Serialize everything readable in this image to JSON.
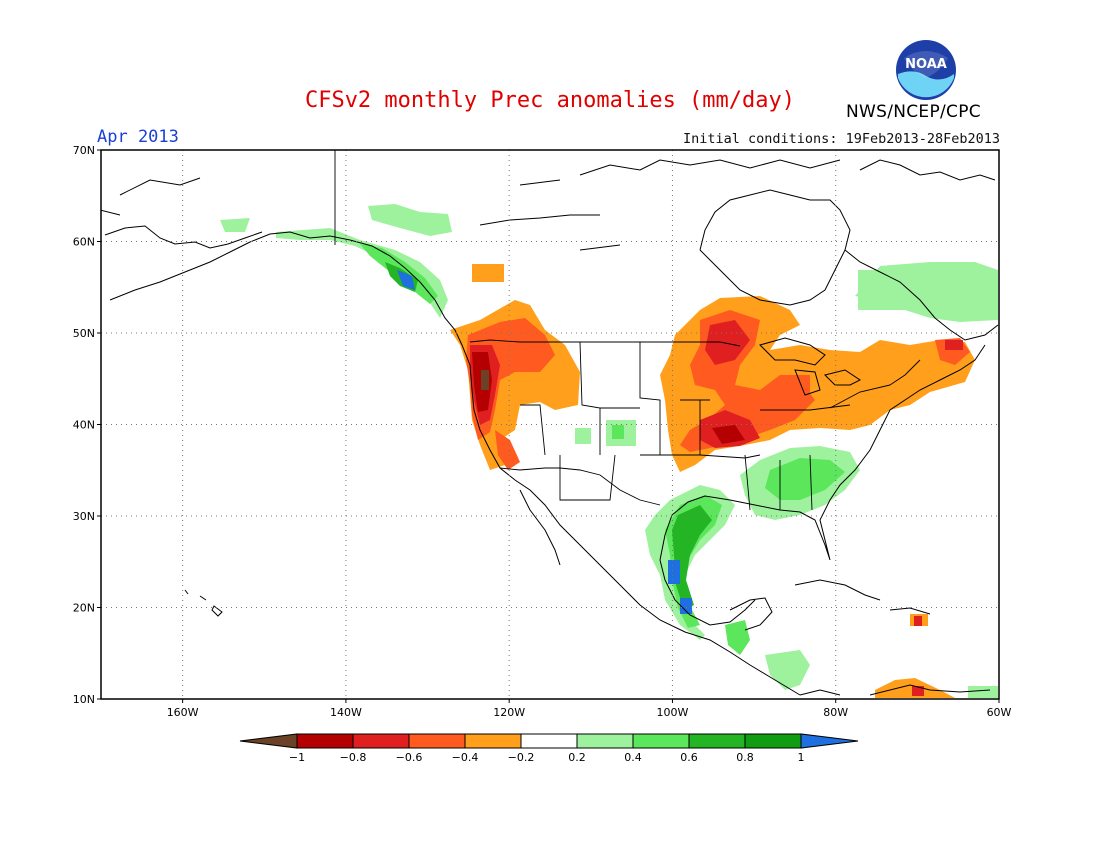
{
  "title": "CFSv2 monthly Prec anomalies (mm/day)",
  "month": "Apr 2013",
  "initial_conditions": "Initial conditions: 19Feb2013-28Feb2013",
  "agency": "NWS/NCEP/CPC",
  "logo_text": "NOAA",
  "map": {
    "lat_ticks": [
      "70N",
      "60N",
      "50N",
      "40N",
      "30N",
      "20N",
      "10N"
    ],
    "lon_ticks": [
      "160W",
      "140W",
      "120W",
      "100W",
      "80W",
      "60W"
    ],
    "lat_range": [
      10,
      70
    ],
    "lon_range": [
      -170,
      -60
    ],
    "grid": "dotted"
  },
  "colorbar": {
    "labels": [
      "-1",
      "-0.8",
      "-0.6",
      "-0.4",
      "-0.2",
      "0.2",
      "0.4",
      "0.6",
      "0.8",
      "1"
    ],
    "colors": [
      "#6b4226",
      "#b40000",
      "#e02020",
      "#ff5a1f",
      "#ff9f1c",
      "#ffffff",
      "#9ef29e",
      "#5ce65c",
      "#23b523",
      "#129c12",
      "#1e6fe0"
    ]
  },
  "anomaly_regions": [
    {
      "name": "pacific-northwest-dry",
      "value": -0.6
    },
    {
      "name": "northern-rockies-dry",
      "value": -0.4
    },
    {
      "name": "midwest-dry",
      "value": -0.6
    },
    {
      "name": "northeast-dry",
      "value": -0.3
    },
    {
      "name": "southeast-wet",
      "value": 0.5
    },
    {
      "name": "mexico-gulf-wet",
      "value": 0.8
    },
    {
      "name": "alaska-panhandle-wet",
      "value": 0.6
    },
    {
      "name": "labrador-wet",
      "value": 0.3
    }
  ]
}
